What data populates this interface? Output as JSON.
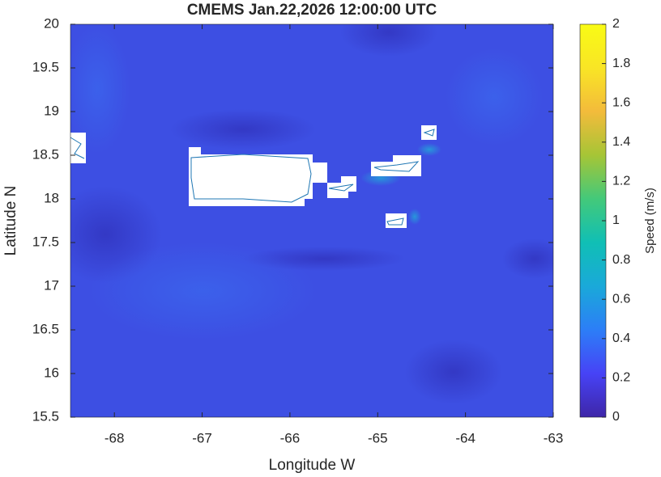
{
  "chart_data": {
    "type": "map",
    "title": "CMEMS Jan.22,2026 12:00:00 UTC",
    "xlabel": "Longitude W",
    "ylabel": "Latitude N",
    "xlim": [
      -68.5,
      -63
    ],
    "xticks": [
      -68,
      -67,
      -66,
      -65,
      -64,
      -63
    ],
    "ylim": [
      15.5,
      20
    ],
    "yticks": [
      15.5,
      16,
      16.5,
      17,
      17.5,
      18,
      18.5,
      19,
      19.5,
      20
    ],
    "colorbar": {
      "label": "Speed (m/s)",
      "lim": [
        0,
        2
      ],
      "ticks": [
        0,
        0.2,
        0.4,
        0.6,
        0.8,
        1,
        1.2,
        1.4,
        1.6,
        1.8,
        2
      ],
      "colormap": [
        "#3e26a8",
        "#4743f6",
        "#2c7ef7",
        "#1aa9d9",
        "#10bfb5",
        "#43c97a",
        "#a6c536",
        "#f3bb3b",
        "#f9e525",
        "#f9fb15"
      ]
    }
  }
}
